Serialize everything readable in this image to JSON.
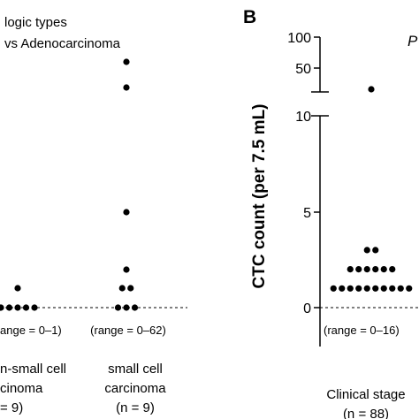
{
  "chart_data": [
    {
      "type": "scatter",
      "panel_label": "",
      "title_lines": [
        "logic types",
        "vs Adenocarcinoma"
      ],
      "groups": [
        {
          "label_lines": [
            "n-small cell",
            "cinoma",
            "= 9)"
          ],
          "range_text": "ange = 0–1)",
          "values": [
            0,
            0,
            0,
            0,
            0,
            1
          ]
        },
        {
          "label_lines": [
            "small cell",
            "carcinoma",
            "(n = 9)"
          ],
          "range_text": "(range = 0–62)",
          "values": [
            0,
            0,
            0,
            1,
            1,
            2,
            5,
            58,
            62
          ]
        }
      ]
    },
    {
      "type": "scatter",
      "panel_label": "B",
      "ylabel": "CTC count (per 7.5 mL)",
      "axis": {
        "lower_segment": {
          "range": [
            0,
            10
          ],
          "ticks": [
            "0",
            "5",
            "10"
          ]
        },
        "upper_segment": {
          "range": [
            40,
            100
          ],
          "ticks": [
            "50",
            "100"
          ]
        },
        "break": true
      },
      "corner_text": "P",
      "groups": [
        {
          "label_lines": [
            "Clinical stage",
            "(n = 88)"
          ],
          "range_text": "(range = 0–16)",
          "values": [
            16,
            3,
            3,
            2,
            2,
            2,
            2,
            2,
            2,
            1,
            1,
            1,
            1,
            1,
            1,
            1,
            1,
            1,
            1
          ]
        }
      ]
    }
  ]
}
